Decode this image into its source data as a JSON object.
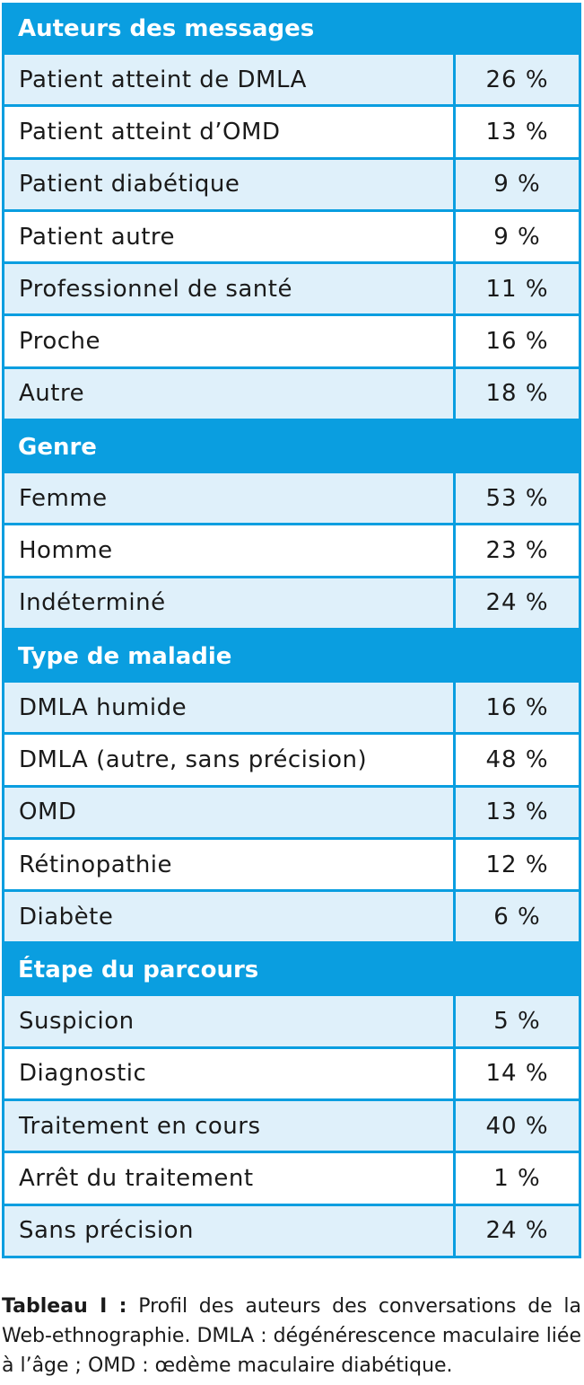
{
  "colors": {
    "header": "#0a9ee0",
    "shaded_row": "#dff0fa",
    "text": "#1a1a1a"
  },
  "sections": [
    {
      "title": "Auteurs des messages",
      "rows": [
        {
          "label": "Patient atteint de DMLA",
          "value": "26 %"
        },
        {
          "label": "Patient atteint d’OMD",
          "value": "13 %"
        },
        {
          "label": "Patient diabétique",
          "value": "9 %"
        },
        {
          "label": "Patient autre",
          "value": "9 %"
        },
        {
          "label": "Professionnel de santé",
          "value": "11 %"
        },
        {
          "label": "Proche",
          "value": "16 %"
        },
        {
          "label": "Autre",
          "value": "18 %"
        }
      ]
    },
    {
      "title": "Genre",
      "rows": [
        {
          "label": "Femme",
          "value": "53 %"
        },
        {
          "label": "Homme",
          "value": "23 %"
        },
        {
          "label": "Indéterminé",
          "value": "24 %"
        }
      ]
    },
    {
      "title": "Type de maladie",
      "rows": [
        {
          "label": "DMLA humide",
          "value": "16 %"
        },
        {
          "label": "DMLA (autre, sans précision)",
          "value": "48 %"
        },
        {
          "label": "OMD",
          "value": "13 %"
        },
        {
          "label": "Rétinopathie",
          "value": "12 %"
        },
        {
          "label": "Diabète",
          "value": "6 %"
        }
      ]
    },
    {
      "title": "Étape du parcours",
      "rows": [
        {
          "label": "Suspicion",
          "value": "5 %"
        },
        {
          "label": "Diagnostic",
          "value": "14 %"
        },
        {
          "label": "Traitement en cours",
          "value": "40 %"
        },
        {
          "label": "Arrêt du traitement",
          "value": "1 %"
        },
        {
          "label": "Sans précision",
          "value": "24 %"
        }
      ]
    }
  ],
  "caption": {
    "label": "Tableau I :",
    "text": "Profil des auteurs des conversations de la Web-ethnographie. DMLA : dégénérescence maculaire liée à l’âge ; OMD : œdème maculaire diabétique."
  }
}
